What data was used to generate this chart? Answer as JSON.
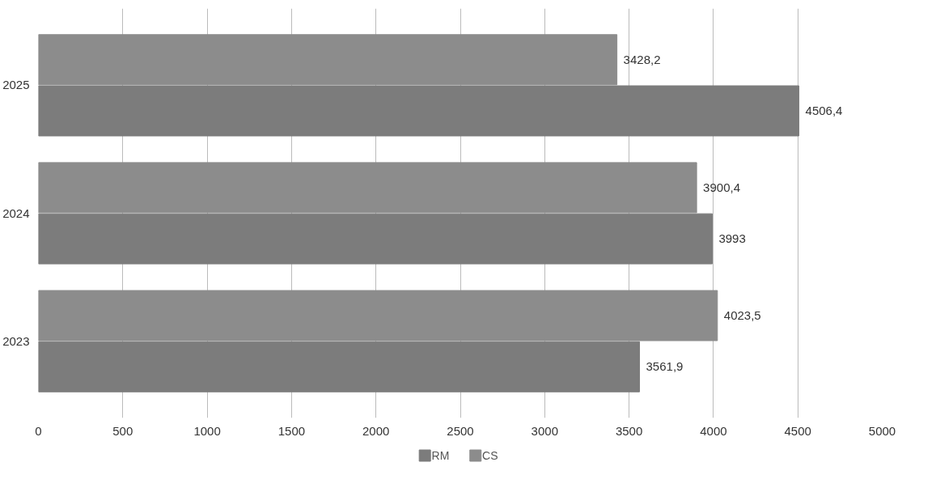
{
  "chart_data": {
    "type": "bar",
    "orientation": "horizontal",
    "categories": [
      "2025",
      "2024",
      "2023"
    ],
    "series": [
      {
        "name": "RM",
        "color": "#7c7c7c",
        "values": [
          4506.4,
          3993,
          3561.9
        ],
        "value_labels": [
          "4506,4",
          "3993",
          "3561,9"
        ]
      },
      {
        "name": "CS",
        "color": "#8c8c8c",
        "values": [
          3428.2,
          3900.4,
          4023.5
        ],
        "value_labels": [
          "3428,2",
          "3900,4",
          "4023,5"
        ]
      }
    ],
    "xlim": [
      0,
      5000
    ],
    "xticks": [
      0,
      500,
      1000,
      1500,
      2000,
      2500,
      3000,
      3500,
      4000,
      4500,
      5000
    ],
    "grid": "x",
    "legend": "bottom"
  }
}
